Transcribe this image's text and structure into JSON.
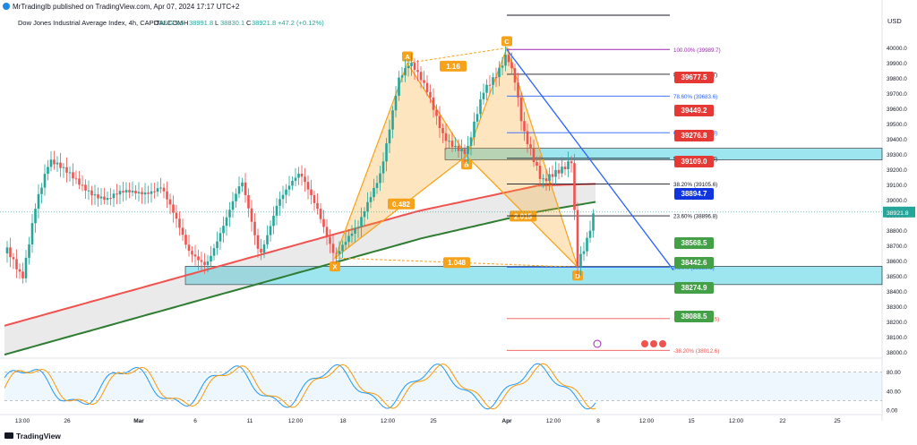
{
  "header": {
    "published": "MrTradingIb published on TradingView.com, Apr 07, 2024 17:17 UTC+2",
    "symbol": "Dow Jones Industrial Average Index, 4h, CAPITALCOM",
    "ohlc": {
      "o_label": "O",
      "o": "38875.6",
      "h_label": "H",
      "h": "38991.8",
      "l_label": "L",
      "l": "38830.1",
      "c_label": "C",
      "c": "38921.8",
      "chg": "+47.2 (+0.12%)"
    },
    "currency": "USD"
  },
  "footer": {
    "brand": "TradingView"
  },
  "colors": {
    "up": "#26a69a",
    "down": "#ef5350",
    "pattern": "#f7a21b",
    "ma_red": "#ef5350",
    "ma_green": "#2e7d32",
    "zone": "#00bcd4",
    "fib_blue": "#2962ff",
    "fib_purple": "#9c27b0",
    "stoch_blue": "#2196f3",
    "stoch_orange": "#ff9800"
  },
  "chart_data": {
    "type": "candlestick",
    "timeframe": "4h",
    "ylim": [
      37950,
      40150
    ],
    "yticks": [
      38000,
      38100,
      38200,
      38300,
      38400,
      38500,
      38600,
      38700,
      38800,
      38900,
      39000,
      39100,
      39200,
      39300,
      39400,
      39500,
      39600,
      39700,
      39800,
      39900,
      40000
    ],
    "xticks": [
      "13:00",
      "26",
      "Mar",
      "6",
      "11",
      "12:00",
      "18",
      "12:00",
      "25",
      "Apr",
      "12:00",
      "8",
      "12:00",
      "15",
      "12:00",
      "22",
      "25"
    ],
    "last_price": "38921.8",
    "harmonic": {
      "points": [
        {
          "label": "X",
          "price": 38620
        },
        {
          "label": "A",
          "price": 39900
        },
        {
          "label": "B",
          "price": 39290
        },
        {
          "label": "C",
          "price": 40000
        },
        {
          "label": "D",
          "price": 38560
        }
      ],
      "ratios": [
        "1.16",
        "0.482",
        "2.015",
        "1.048"
      ]
    },
    "fib_levels": [
      {
        "label": "100.00% (39989.7)",
        "price": 39989.7
      },
      {
        "label": "88.60% (39826.7)",
        "price": 39826.7
      },
      {
        "label": "78.60% (39683.6)",
        "price": 39683.6
      },
      {
        "label": "61.80% (39443.3)",
        "price": 39443.3
      },
      {
        "label": "50.00% (39274.4)",
        "price": 39274.4
      },
      {
        "label": "38.20% (39105.6)",
        "price": 39105.6
      },
      {
        "label": "23.60% (38896.8)",
        "price": 38896.8
      },
      {
        "label": "0.00% (38559.1)",
        "price": 38559.1
      },
      {
        "label": "-23.60% (38221.5)",
        "price": 38221.5
      },
      {
        "label": "-38.20% (38012.6)",
        "price": 38012.6
      }
    ],
    "resistance_labels": [
      "39677.5",
      "39449.2",
      "39276.8",
      "39109.0"
    ],
    "current_label": "38894.7",
    "support_labels": [
      "38568.5",
      "38442.6",
      "38274.9",
      "38088.5"
    ],
    "zones": [
      {
        "from": 39265,
        "to": 39340
      },
      {
        "from": 38445,
        "to": 38565
      }
    ],
    "stochastic": {
      "levels": [
        80,
        20
      ],
      "ticks": [
        "80.00",
        "40.00",
        "0.00"
      ]
    }
  }
}
